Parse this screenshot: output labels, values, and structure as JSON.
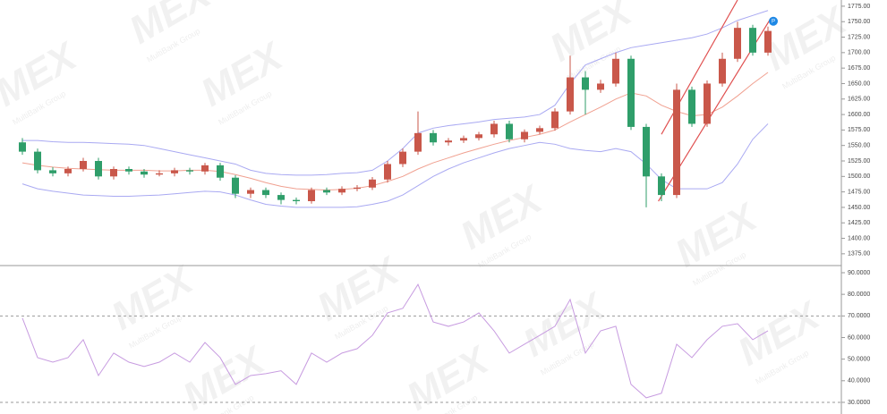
{
  "chart_data": [
    {
      "type": "candlestick",
      "open": [
        1555,
        1540,
        1510,
        1505,
        1512,
        1525,
        1500,
        1512,
        1508,
        1503,
        1505,
        1510,
        1508,
        1518,
        1498,
        1472,
        1478,
        1470,
        1462,
        1460,
        1478,
        1474,
        1480,
        1482,
        1495,
        1520,
        1540,
        1570,
        1555,
        1558,
        1562,
        1568,
        1585,
        1560,
        1572,
        1578,
        1605,
        1660,
        1640,
        1650,
        1690,
        1580,
        1500,
        1470,
        1640,
        1585,
        1650,
        1690,
        1740,
        1700
      ],
      "high": [
        1562,
        1545,
        1515,
        1516,
        1530,
        1530,
        1516,
        1516,
        1512,
        1510,
        1514,
        1514,
        1522,
        1522,
        1502,
        1482,
        1482,
        1474,
        1466,
        1482,
        1482,
        1484,
        1486,
        1499,
        1525,
        1545,
        1605,
        1575,
        1562,
        1566,
        1572,
        1590,
        1590,
        1576,
        1582,
        1610,
        1695,
        1670,
        1656,
        1700,
        1695,
        1585,
        1505,
        1650,
        1645,
        1655,
        1700,
        1750,
        1745,
        1742
      ],
      "low": [
        1535,
        1505,
        1500,
        1500,
        1508,
        1495,
        1495,
        1503,
        1498,
        1500,
        1500,
        1503,
        1503,
        1493,
        1465,
        1465,
        1465,
        1455,
        1455,
        1456,
        1470,
        1470,
        1476,
        1478,
        1490,
        1515,
        1535,
        1550,
        1550,
        1554,
        1558,
        1563,
        1555,
        1555,
        1568,
        1574,
        1600,
        1600,
        1635,
        1645,
        1575,
        1450,
        1460,
        1465,
        1580,
        1580,
        1645,
        1685,
        1695,
        1695
      ],
      "close": [
        1540,
        1510,
        1505,
        1512,
        1525,
        1500,
        1512,
        1508,
        1503,
        1505,
        1510,
        1508,
        1518,
        1498,
        1472,
        1478,
        1470,
        1462,
        1460,
        1478,
        1474,
        1480,
        1482,
        1495,
        1520,
        1540,
        1570,
        1555,
        1558,
        1562,
        1568,
        1585,
        1560,
        1572,
        1578,
        1605,
        1660,
        1640,
        1650,
        1690,
        1580,
        1500,
        1470,
        1640,
        1585,
        1650,
        1690,
        1740,
        1700,
        1735
      ],
      "up_color": "#c9574a",
      "down_color": "#2f9e6a",
      "bands": [
        {
          "color": "#a9a9f2",
          "values": [
            1558,
            1558,
            1556,
            1555,
            1555,
            1554,
            1553,
            1552,
            1550,
            1545,
            1540,
            1535,
            1530,
            1525,
            1520,
            1510,
            1505,
            1503,
            1502,
            1502,
            1503,
            1505,
            1506,
            1510,
            1525,
            1545,
            1570,
            1578,
            1582,
            1585,
            1588,
            1592,
            1594,
            1596,
            1600,
            1615,
            1650,
            1680,
            1690,
            1700,
            1708,
            1712,
            1716,
            1720,
            1724,
            1730,
            1740,
            1752,
            1760,
            1768
          ]
        },
        {
          "color": "#f0a090",
          "values": [
            1522,
            1518,
            1515,
            1513,
            1512,
            1511,
            1510,
            1510,
            1510,
            1509,
            1509,
            1510,
            1510,
            1508,
            1503,
            1497,
            1490,
            1484,
            1480,
            1479,
            1478,
            1479,
            1481,
            1485,
            1492,
            1500,
            1512,
            1522,
            1530,
            1538,
            1545,
            1552,
            1558,
            1563,
            1568,
            1575,
            1588,
            1600,
            1612,
            1625,
            1635,
            1630,
            1615,
            1605,
            1598,
            1600,
            1612,
            1630,
            1650,
            1668
          ]
        },
        {
          "color": "#a9a9f2",
          "values": [
            1488,
            1480,
            1476,
            1473,
            1470,
            1469,
            1468,
            1468,
            1469,
            1470,
            1472,
            1474,
            1476,
            1475,
            1470,
            1462,
            1455,
            1452,
            1450,
            1450,
            1450,
            1450,
            1451,
            1455,
            1460,
            1470,
            1485,
            1500,
            1512,
            1522,
            1530,
            1538,
            1545,
            1550,
            1555,
            1552,
            1545,
            1542,
            1540,
            1545,
            1540,
            1520,
            1495,
            1480,
            1480,
            1480,
            1490,
            1520,
            1560,
            1585
          ]
        }
      ],
      "trendlines": [
        {
          "color": "#e05050",
          "x": [
            41.8,
            49.2
          ],
          "values": [
            1460,
            1756
          ]
        },
        {
          "color": "#e05050",
          "x": [
            42,
            47
          ],
          "values": [
            1568,
            1785
          ]
        }
      ],
      "annotation": "P",
      "ylim": [
        1356,
        1785
      ],
      "yticks": [
        {
          "value": 1375,
          "label": "1375.00"
        },
        {
          "value": 1400,
          "label": "1400.00"
        },
        {
          "value": 1425,
          "label": "1425.00"
        },
        {
          "value": 1450,
          "label": "1450.00"
        },
        {
          "value": 1475,
          "label": "1475.00"
        },
        {
          "value": 1500,
          "label": "1500.00"
        },
        {
          "value": 1525,
          "label": "1525.00"
        },
        {
          "value": 1550,
          "label": "1550.00"
        },
        {
          "value": 1575,
          "label": "1575.00"
        },
        {
          "value": 1600,
          "label": "1600.00"
        },
        {
          "value": 1625,
          "label": "1625.00"
        },
        {
          "value": 1650,
          "label": "1650.00"
        },
        {
          "value": 1675,
          "label": "1675.00"
        },
        {
          "value": 1700,
          "label": "1700.00"
        },
        {
          "value": 1725,
          "label": "1725.00"
        },
        {
          "value": 1750,
          "label": "1750.00"
        },
        {
          "value": 1775,
          "label": "1775.00"
        }
      ]
    },
    {
      "type": "line",
      "values": [
        69,
        50.7,
        48.6,
        50.7,
        59,
        42.4,
        52.8,
        48.6,
        46.6,
        48.6,
        52.8,
        48.6,
        57.7,
        50.7,
        38.3,
        42.4,
        43.3,
        44.6,
        38.3,
        52.8,
        48.6,
        52.8,
        54.8,
        61,
        71.4,
        73.5,
        84.6,
        67.2,
        65.2,
        67.2,
        71.4,
        63.1,
        52.8,
        56.9,
        61,
        65.2,
        77.6,
        52.8,
        63.1,
        65.2,
        38.3,
        32.1,
        34.2,
        56.9,
        50.7,
        59,
        65.2,
        66.4,
        59,
        63.1
      ],
      "color": "#c79be0",
      "levels": [
        70,
        30
      ],
      "ylim": [
        24.6,
        92.9
      ],
      "yticks": [
        {
          "value": 30,
          "label": "30.0000"
        },
        {
          "value": 40,
          "label": "40.0000"
        },
        {
          "value": 50,
          "label": "50.0000"
        },
        {
          "value": 60,
          "label": "60.0000"
        },
        {
          "value": 70,
          "label": "70.0000"
        },
        {
          "value": 80,
          "label": "80.0000"
        },
        {
          "value": 90,
          "label": "90.0000"
        }
      ]
    }
  ],
  "watermark": {
    "logo": "MEX",
    "text": "MultiBank Group"
  }
}
